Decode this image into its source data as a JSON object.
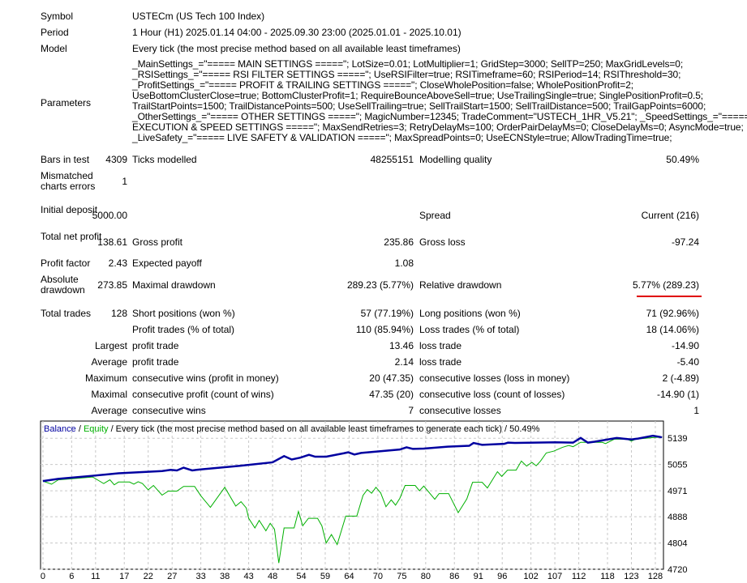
{
  "header": [
    {
      "label": "Symbol",
      "value": "USTECm (US Tech 100 Index)"
    },
    {
      "label": "Period",
      "value": "1 Hour (H1) 2025.01.14 04:00 - 2025.09.30 23:00 (2025.01.01 - 2025.10.01)"
    },
    {
      "label": "Model",
      "value": "Every tick (the most precise method based on all available least timeframes)"
    }
  ],
  "parameters": {
    "label": "Parameters",
    "lines": [
      "_MainSettings_=\"===== MAIN SETTINGS =====\"; LotSize=0.01; LotMultiplier=1; GridStep=3000; SellTP=250; MaxGridLevels=0;",
      "_RSISettings_=\"===== RSI FILTER SETTINGS =====\"; UseRSIFilter=true; RSITimeframe=60; RSIPeriod=14; RSIThreshold=30;",
      "_ProfitSettings_=\"===== PROFIT & TRAILING SETTINGS =====\"; CloseWholePosition=false; WholePositionProfit=2;",
      "UseBottomClusterClose=true; BottomClusterProfit=1; RequireBounceAboveSell=true; UseTrailingSingle=true; SinglePositionProfit=0.5;",
      "TrailStartPoints=1500; TrailDistancePoints=500; UseSellTrailing=true; SellTrailStart=1500; SellTrailDistance=500; TrailGapPoints=6000;",
      "_OtherSettings_=\"===== OTHER SETTINGS =====\"; MagicNumber=12345; TradeComment=\"USTECH_1HR_V5.21\"; _SpeedSettings_=\"=====",
      "EXECUTION & SPEED SETTINGS =====\"; MaxSendRetries=3; RetryDelayMs=100; OrderPairDelayMs=0; CloseDelayMs=0; AsyncMode=true;",
      "_LiveSafety_=\"===== LIVE SAFETY & VALIDATION =====\"; MaxSpreadPoints=0; UseECNStyle=true; AllowTradingTime=true;"
    ]
  },
  "stats": [
    {
      "l1": "Bars in test",
      "v1": "4309",
      "l2": "Ticks modelled",
      "v2": "48255151",
      "l3": "Modelling quality",
      "v3": "50.49%"
    },
    {
      "l1": "Mismatched charts errors",
      "v1": "1"
    },
    {
      "l1": "Initial deposit",
      "v1": "5000.00",
      "l3": "Spread",
      "v3": "Current (216)"
    },
    {
      "l1": "Total net profit",
      "v1": "138.61",
      "l2": "Gross profit",
      "v2": "235.86",
      "l3": "Gross loss",
      "v3": "-97.24"
    },
    {
      "l1": "Profit factor",
      "v1": "2.43",
      "l2": "Expected payoff",
      "v2": "1.08"
    },
    {
      "l1": "Absolute drawdown",
      "v1": "273.85",
      "l2": "Maximal drawdown",
      "v2": "289.23 (5.77%)",
      "l3": "Relative drawdown",
      "v3": "5.77% (289.23)"
    },
    {
      "l1": "Total trades",
      "v1": "128",
      "l2": "Short positions (won %)",
      "v2": "57 (77.19%)",
      "l3": "Long positions (won %)",
      "v3": "71 (92.96%)"
    },
    {
      "l2": "Profit trades (% of total)",
      "v2": "110 (85.94%)",
      "l3": "Loss trades (% of total)",
      "v3": "18 (14.06%)"
    },
    {
      "r1": "Largest",
      "l2": "profit trade",
      "v2": "13.46",
      "l3": "loss trade",
      "v3": "-14.90"
    },
    {
      "r1": "Average",
      "l2": "profit trade",
      "v2": "2.14",
      "l3": "loss trade",
      "v3": "-5.40"
    },
    {
      "r1": "Maximum",
      "l2": "consecutive wins (profit in money)",
      "v2": "20 (47.35)",
      "l3": "consecutive losses (loss in money)",
      "v3": "2 (-4.89)"
    },
    {
      "r1": "Maximal",
      "l2": "consecutive profit (count of wins)",
      "v2": "47.35 (20)",
      "l3": "consecutive loss (count of losses)",
      "v3": "-14.90 (1)"
    },
    {
      "r1": "Average",
      "l2": "consecutive wins",
      "v2": "7",
      "l3": "consecutive losses",
      "v3": "1"
    }
  ],
  "highlight_color": "#e00000",
  "chart_data": {
    "type": "line",
    "legend": {
      "balance": "Balance",
      "sep1": " / ",
      "equity": "Equity",
      "rest": " / Every tick (the most precise method based on all available least timeframes to generate each tick) / 50.49%"
    },
    "xlim": [
      -0.5,
      129.7
    ],
    "ylim": [
      4720,
      5194
    ],
    "x_ticks": [
      0,
      6,
      11,
      17,
      22,
      27,
      33,
      38,
      43,
      48,
      54,
      59,
      64,
      70,
      75,
      80,
      86,
      91,
      96,
      102,
      107,
      112,
      118,
      123,
      128
    ],
    "y_ticks": [
      4720,
      4804,
      4888,
      4971,
      5055,
      5139
    ],
    "grid": true,
    "series": [
      {
        "name": "Equity",
        "color": "#00b000",
        "points": [
          [
            0,
            5002
          ],
          [
            1.8,
            4992
          ],
          [
            3.2,
            5006
          ],
          [
            10.4,
            5015
          ],
          [
            12.7,
            4994
          ],
          [
            14,
            5006
          ],
          [
            14.9,
            4990
          ],
          [
            15.8,
            4999
          ],
          [
            18.1,
            4999
          ],
          [
            19,
            4992
          ],
          [
            19.9,
            5000
          ],
          [
            20.8,
            4994
          ],
          [
            22,
            4974
          ],
          [
            23.1,
            4988
          ],
          [
            24.9,
            4957
          ],
          [
            26.2,
            4970
          ],
          [
            28,
            4970
          ],
          [
            29.4,
            4985
          ],
          [
            31.7,
            4985
          ],
          [
            33,
            4955
          ],
          [
            35,
            4918
          ],
          [
            38,
            4982
          ],
          [
            40.3,
            4922
          ],
          [
            41.4,
            4936
          ],
          [
            42.5,
            4916
          ],
          [
            43,
            4883
          ],
          [
            44.3,
            4852
          ],
          [
            45.2,
            4876
          ],
          [
            46.6,
            4843
          ],
          [
            47.5,
            4867
          ],
          [
            48.4,
            4848
          ],
          [
            49.3,
            4740
          ],
          [
            50.4,
            4852
          ],
          [
            52.5,
            4852
          ],
          [
            53.4,
            4905
          ],
          [
            54.3,
            4859
          ],
          [
            55.5,
            4883
          ],
          [
            57.4,
            4883
          ],
          [
            58.3,
            4859
          ],
          [
            59.2,
            4804
          ],
          [
            60.3,
            4831
          ],
          [
            61.5,
            4799
          ],
          [
            63.3,
            4890
          ],
          [
            65.6,
            4890
          ],
          [
            66.9,
            4956
          ],
          [
            67.8,
            4975
          ],
          [
            68.7,
            4963
          ],
          [
            69.6,
            4982
          ],
          [
            70.6,
            4964
          ],
          [
            71.7,
            4920
          ],
          [
            72.8,
            4942
          ],
          [
            73.7,
            4925
          ],
          [
            74.6,
            4947
          ],
          [
            75.7,
            4988
          ],
          [
            77.8,
            4988
          ],
          [
            78.7,
            4971
          ],
          [
            79.6,
            4986
          ],
          [
            81.9,
            4944
          ],
          [
            82.8,
            4962
          ],
          [
            84.8,
            4962
          ],
          [
            86.8,
            4901
          ],
          [
            88.6,
            4945
          ],
          [
            89.8,
            4998
          ],
          [
            91.8,
            4998
          ],
          [
            92.9,
            4980
          ],
          [
            95,
            5032
          ],
          [
            95.9,
            5017
          ],
          [
            97.1,
            5037
          ],
          [
            98.9,
            5037
          ],
          [
            100,
            5066
          ],
          [
            101.1,
            5050
          ],
          [
            102.2,
            5062
          ],
          [
            103.1,
            5051
          ],
          [
            104,
            5066
          ],
          [
            105.2,
            5092
          ],
          [
            106.8,
            5098
          ],
          [
            108.6,
            5110
          ],
          [
            109.9,
            5116
          ],
          [
            110.8,
            5112
          ],
          [
            112.4,
            5126
          ],
          [
            116.9,
            5126
          ],
          [
            117.6,
            5122
          ],
          [
            119.4,
            5136
          ],
          [
            122.1,
            5136
          ],
          [
            123,
            5130
          ],
          [
            123.9,
            5136
          ],
          [
            128,
            5142
          ],
          [
            129.4,
            5142
          ]
        ]
      },
      {
        "name": "Balance",
        "color": "#0000a0",
        "points": [
          [
            0,
            5002
          ],
          [
            3.2,
            5009
          ],
          [
            10.4,
            5019
          ],
          [
            15.8,
            5027
          ],
          [
            24.9,
            5034
          ],
          [
            26.7,
            5038
          ],
          [
            28,
            5036
          ],
          [
            29.4,
            5045
          ],
          [
            31.2,
            5036
          ],
          [
            32.1,
            5038
          ],
          [
            41.2,
            5051
          ],
          [
            48,
            5062
          ],
          [
            50.4,
            5082
          ],
          [
            52,
            5071
          ],
          [
            53.8,
            5077
          ],
          [
            55.6,
            5086
          ],
          [
            56.9,
            5080
          ],
          [
            59.2,
            5080
          ],
          [
            62.9,
            5091
          ],
          [
            63.8,
            5094
          ],
          [
            65.1,
            5087
          ],
          [
            66.5,
            5092
          ],
          [
            74.6,
            5103
          ],
          [
            76,
            5110
          ],
          [
            77.3,
            5105
          ],
          [
            79.6,
            5106
          ],
          [
            84.6,
            5112
          ],
          [
            89.1,
            5115
          ],
          [
            90,
            5124
          ],
          [
            91.8,
            5118
          ],
          [
            96.4,
            5121
          ],
          [
            97.2,
            5125
          ],
          [
            98.6,
            5124
          ],
          [
            107.1,
            5126
          ],
          [
            110.8,
            5125
          ],
          [
            112.4,
            5140
          ],
          [
            113.9,
            5125
          ],
          [
            115.3,
            5128
          ],
          [
            119.9,
            5140
          ],
          [
            121.7,
            5137
          ],
          [
            123,
            5135
          ],
          [
            124.4,
            5138
          ],
          [
            127.5,
            5147
          ],
          [
            129.4,
            5142
          ]
        ]
      }
    ]
  }
}
